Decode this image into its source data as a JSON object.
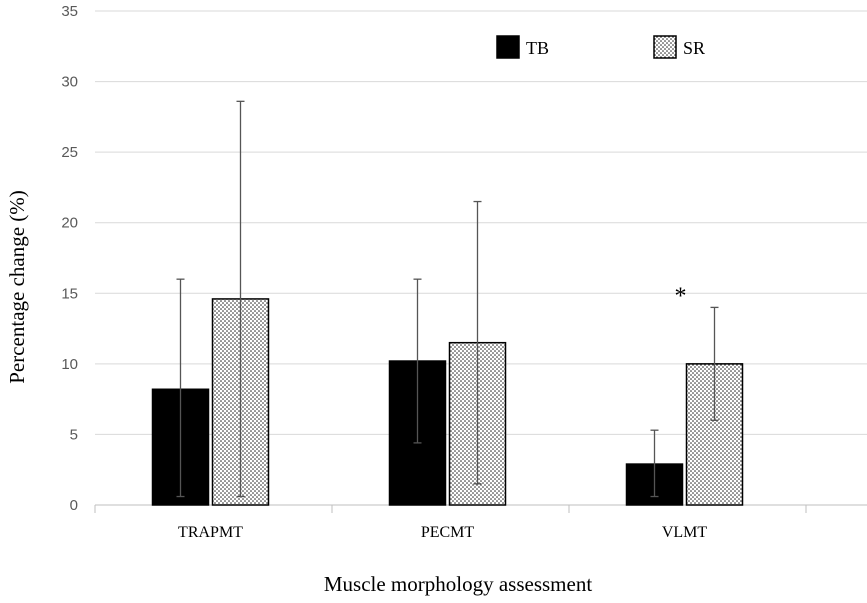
{
  "chart_data": {
    "type": "bar",
    "title": "",
    "xlabel": "Muscle morphology assessment",
    "ylabel": "Percentage change (%)",
    "ylim": [
      0,
      35
    ],
    "yticks": [
      0,
      5,
      10,
      15,
      20,
      25,
      30,
      35
    ],
    "categories": [
      "TRAPMT",
      "PECMT",
      "VLMT"
    ],
    "series": [
      {
        "name": "TB",
        "values": [
          8.2,
          10.2,
          2.9
        ],
        "err_low": [
          0.6,
          4.4,
          0.6
        ],
        "err_high": [
          16.0,
          16.0,
          5.3
        ],
        "color": "#000000",
        "pattern": "solid"
      },
      {
        "name": "SR",
        "values": [
          14.6,
          11.5,
          10.0
        ],
        "err_low": [
          0.6,
          1.5,
          6.0
        ],
        "err_high": [
          28.6,
          21.5,
          14.0
        ],
        "color": "#ffffff",
        "pattern": "dots"
      }
    ],
    "annotations": [
      {
        "text": "*",
        "category": "VLMT",
        "series": "SR",
        "value": 15.2
      }
    ],
    "grid": true,
    "legend_position": "top-right"
  }
}
